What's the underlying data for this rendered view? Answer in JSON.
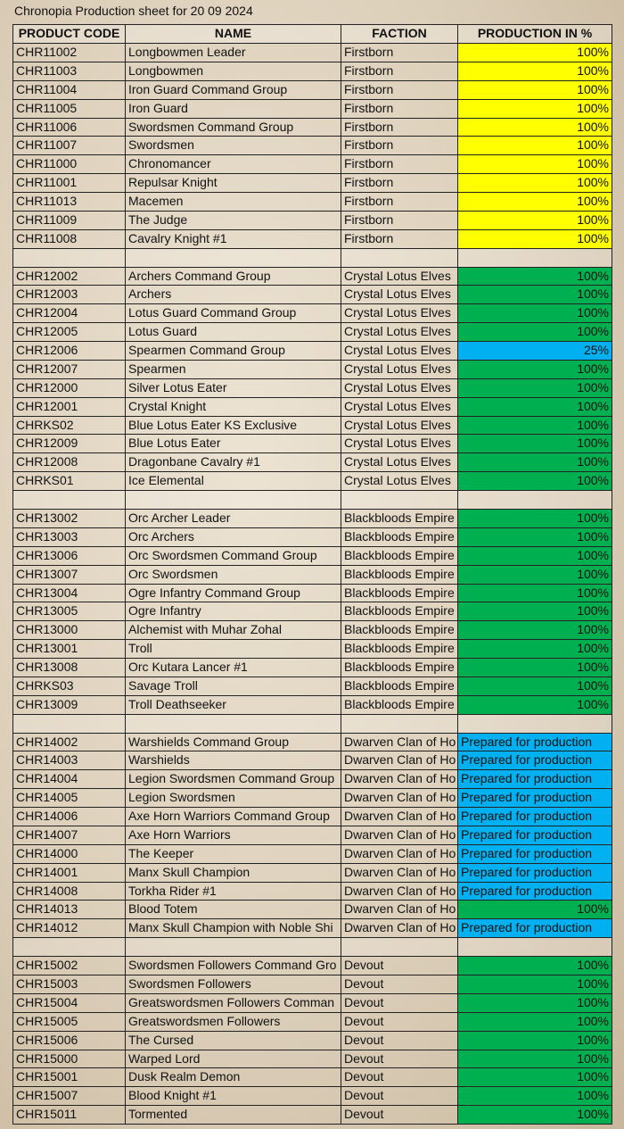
{
  "title": "Chronopia Production sheet for 20 09 2024",
  "header": [
    "PRODUCT CODE",
    "NAME",
    "FACTION",
    "PRODUCTION IN %"
  ],
  "groups": [
    {
      "fill": "#ffff00",
      "rows": [
        [
          "CHR11002",
          "Longbowmen Leader",
          "Firstborn",
          "100%"
        ],
        [
          "CHR11003",
          "Longbowmen",
          "Firstborn",
          "100%"
        ],
        [
          "CHR11004",
          "Iron Guard Command Group",
          "Firstborn",
          "100%"
        ],
        [
          "CHR11005",
          "Iron Guard",
          "Firstborn",
          "100%"
        ],
        [
          "CHR11006",
          "Swordsmen Command Group",
          "Firstborn",
          "100%"
        ],
        [
          "CHR11007",
          "Swordsmen",
          "Firstborn",
          "100%"
        ],
        [
          "CHR11000",
          "Chronomancer",
          "Firstborn",
          "100%"
        ],
        [
          "CHR11001",
          "Repulsar Knight",
          "Firstborn",
          "100%"
        ],
        [
          "CHR11013",
          "Macemen",
          "Firstborn",
          "100%"
        ],
        [
          "CHR11009",
          "The Judge",
          "Firstborn",
          "100%"
        ],
        [
          "CHR11008",
          "Cavalry Knight #1",
          "Firstborn",
          "100%"
        ]
      ]
    },
    {
      "fill": "#00b050",
      "rows": [
        [
          "CHR12002",
          "Archers Command Group",
          "Crystal Lotus Elves",
          "100%"
        ],
        [
          "CHR12003",
          "Archers",
          "Crystal Lotus Elves",
          "100%"
        ],
        [
          "CHR12004",
          "Lotus Guard Command Group",
          "Crystal Lotus Elves",
          "100%"
        ],
        [
          "CHR12005",
          "Lotus Guard",
          "Crystal Lotus Elves",
          "100%"
        ],
        [
          "CHR12006",
          "Spearmen Command Group",
          "Crystal Lotus Elves",
          "25%",
          "#00b0f0"
        ],
        [
          "CHR12007",
          "Spearmen",
          "Crystal Lotus Elves",
          "100%"
        ],
        [
          "CHR12000",
          "Silver Lotus Eater",
          "Crystal Lotus Elves",
          "100%"
        ],
        [
          "CHR12001",
          "Crystal Knight",
          "Crystal Lotus Elves",
          "100%"
        ],
        [
          "CHRKS02",
          "Blue Lotus Eater KS Exclusive",
          "Crystal Lotus Elves",
          "100%"
        ],
        [
          "CHR12009",
          "Blue Lotus Eater",
          "Crystal Lotus Elves",
          "100%"
        ],
        [
          "CHR12008",
          "Dragonbane Cavalry #1",
          "Crystal Lotus Elves",
          "100%"
        ],
        [
          "CHRKS01",
          "Ice Elemental",
          "Crystal Lotus Elves",
          "100%"
        ]
      ]
    },
    {
      "fill": "#00b050",
      "rows": [
        [
          "CHR13002",
          "Orc Archer Leader",
          "Blackbloods Empire",
          "100%"
        ],
        [
          "CHR13003",
          "Orc Archers",
          "Blackbloods Empire",
          "100%"
        ],
        [
          "CHR13006",
          "Orc Swordsmen Command Group",
          "Blackbloods Empire",
          "100%"
        ],
        [
          "CHR13007",
          "Orc Swordsmen",
          "Blackbloods Empire",
          "100%"
        ],
        [
          "CHR13004",
          "Ogre Infantry Command Group",
          "Blackbloods Empire",
          "100%"
        ],
        [
          "CHR13005",
          "Ogre Infantry",
          "Blackbloods Empire",
          "100%"
        ],
        [
          "CHR13000",
          "Alchemist with Muhar Zohal",
          "Blackbloods Empire",
          "100%"
        ],
        [
          "CHR13001",
          "Troll",
          "Blackbloods Empire",
          "100%"
        ],
        [
          "CHR13008",
          "Orc Kutara Lancer #1",
          "Blackbloods Empire",
          "100%"
        ],
        [
          "CHRKS03",
          "Savage Troll",
          "Blackbloods Empire",
          "100%"
        ],
        [
          "CHR13009",
          "Troll Deathseeker",
          "Blackbloods Empire",
          "100%"
        ]
      ]
    },
    {
      "fill": "#00b0f0",
      "rows": [
        [
          "CHR14002",
          "Warshields Command Group",
          "Dwarven Clan of Ho",
          "Prepared for production"
        ],
        [
          "CHR14003",
          "Warshields",
          "Dwarven Clan of Ho",
          "Prepared for production"
        ],
        [
          "CHR14004",
          "Legion Swordsmen Command Group",
          "Dwarven Clan of Ho",
          "Prepared for production"
        ],
        [
          "CHR14005",
          "Legion Swordsmen",
          "Dwarven Clan of Ho",
          "Prepared for production"
        ],
        [
          "CHR14006",
          "Axe Horn Warriors Command Group",
          "Dwarven Clan of Ho",
          "Prepared for production"
        ],
        [
          "CHR14007",
          "Axe Horn Warriors",
          "Dwarven Clan of Ho",
          "Prepared for production"
        ],
        [
          "CHR14000",
          "The Keeper",
          "Dwarven Clan of Ho",
          "Prepared for production"
        ],
        [
          "CHR14001",
          "Manx Skull Champion",
          "Dwarven Clan of Ho",
          "Prepared for production"
        ],
        [
          "CHR14008",
          "Torkha Rider #1",
          "Dwarven Clan of Ho",
          "Prepared for production"
        ],
        [
          "CHR14013",
          "Blood Totem",
          "Dwarven Clan of Ho",
          "100%",
          "#00b050"
        ],
        [
          "CHR14012",
          "Manx Skull Champion with Noble Shi",
          "Dwarven Clan of Ho",
          "Prepared for production"
        ]
      ]
    },
    {
      "fill": "#00b050",
      "rows": [
        [
          "CHR15002",
          "Swordsmen Followers Command Gro",
          "Devout",
          "100%"
        ],
        [
          "CHR15003",
          "Swordsmen Followers",
          "Devout",
          "100%"
        ],
        [
          "CHR15004",
          "Greatswordsmen Followers Comman",
          "Devout",
          "100%"
        ],
        [
          "CHR15005",
          "Greatswordsmen Followers",
          "Devout",
          "100%"
        ],
        [
          "CHR15006",
          "The Cursed",
          "Devout",
          "100%"
        ],
        [
          "CHR15000",
          "Warped Lord",
          "Devout",
          "100%"
        ],
        [
          "CHR15001",
          "Dusk Realm Demon",
          "Devout",
          "100%"
        ],
        [
          "CHR15007",
          "Blood Knight #1",
          "Devout",
          "100%"
        ],
        [
          "CHR15011",
          "Tormented",
          "Devout",
          "100%"
        ]
      ]
    }
  ]
}
